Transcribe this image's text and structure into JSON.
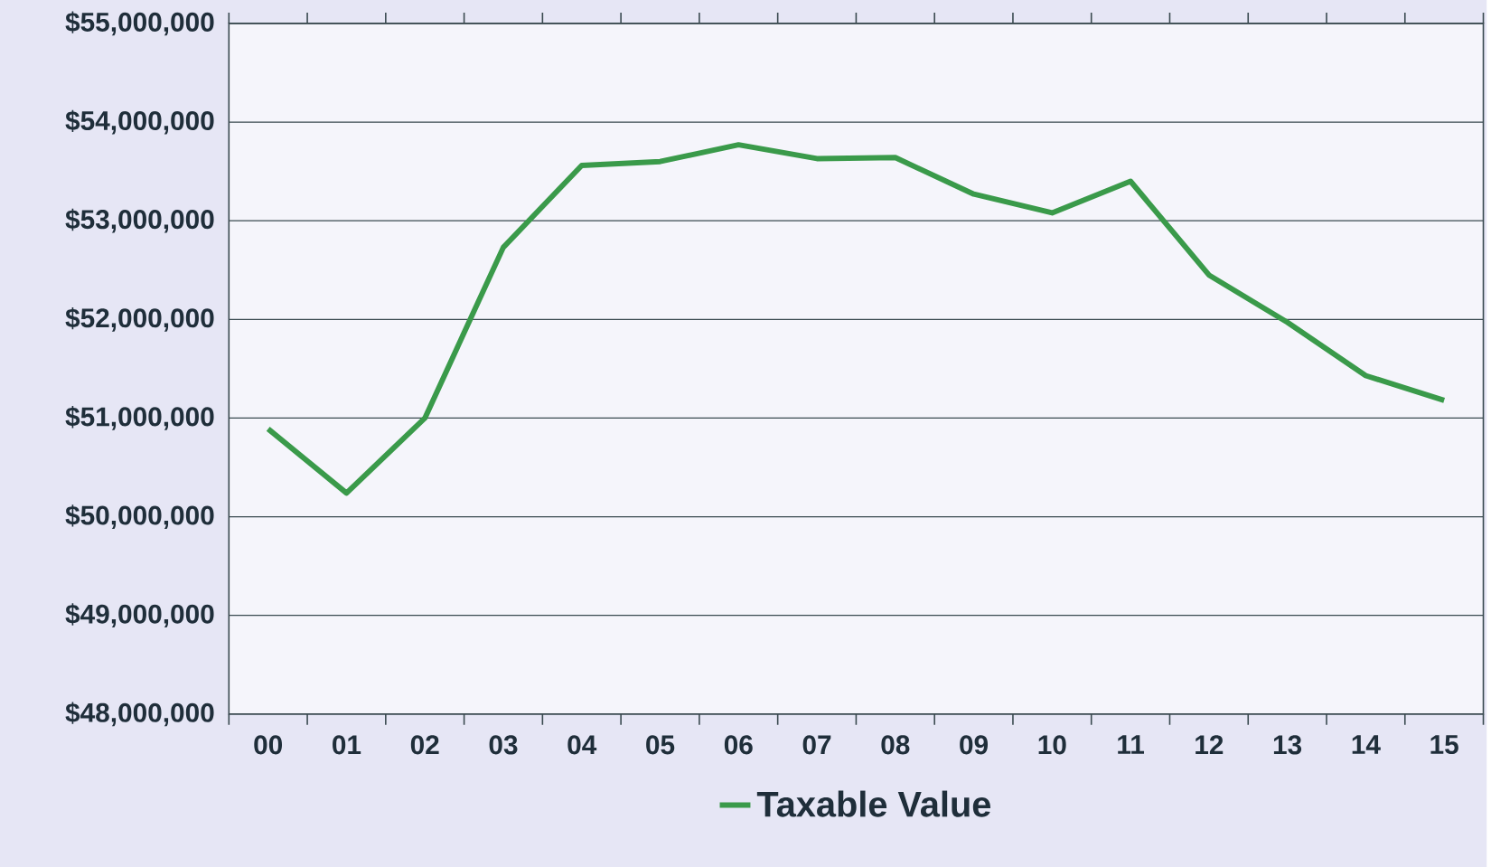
{
  "chart_data": {
    "type": "line",
    "categories": [
      "00",
      "01",
      "02",
      "03",
      "04",
      "05",
      "06",
      "07",
      "08",
      "09",
      "10",
      "11",
      "12",
      "13",
      "14",
      "15"
    ],
    "series": [
      {
        "name": "Taxable Value",
        "color": "#3a9a4a",
        "values": [
          50890000,
          50240000,
          51000000,
          52730000,
          53560000,
          53600000,
          53770000,
          53630000,
          53640000,
          53270000,
          53080000,
          53400000,
          52450000,
          51970000,
          51430000,
          51180000
        ]
      }
    ],
    "ylim": [
      48000000,
      55000000
    ],
    "yticks": [
      {
        "value": 48000000,
        "label": "$48,000,000"
      },
      {
        "value": 49000000,
        "label": "$49,000,000"
      },
      {
        "value": 50000000,
        "label": "$50,000,000"
      },
      {
        "value": 51000000,
        "label": "$51,000,000"
      },
      {
        "value": 52000000,
        "label": "$52,000,000"
      },
      {
        "value": 53000000,
        "label": "$53,000,000"
      },
      {
        "value": 54000000,
        "label": "$54,000,000"
      },
      {
        "value": 55000000,
        "label": "$55,000,000"
      }
    ],
    "grid": "y",
    "legend": "bottom",
    "marker": "none",
    "line_style": "solid"
  }
}
